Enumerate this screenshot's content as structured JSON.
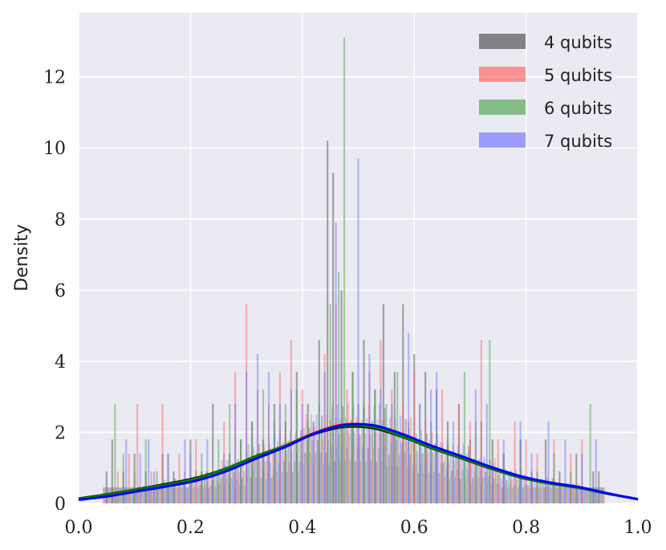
{
  "chart_data": {
    "type": "bar",
    "title": "",
    "xlabel": "",
    "ylabel": "Density",
    "xlim": [
      0.0,
      1.0
    ],
    "ylim": [
      0,
      13.8
    ],
    "x_ticks": [
      "0.0",
      "0.2",
      "0.4",
      "0.6",
      "0.8",
      "1.0"
    ],
    "y_ticks": [
      "0",
      "2",
      "4",
      "6",
      "8",
      "10",
      "12"
    ],
    "grid": true,
    "legend_position": "top-right",
    "series": [
      {
        "name": "4 qubits",
        "color": "#555555",
        "line_color": "#000000",
        "spikes": [
          [
            0.05,
            0.9
          ],
          [
            0.06,
            1.8
          ],
          [
            0.08,
            0.9
          ],
          [
            0.1,
            1.4
          ],
          [
            0.12,
            0.9
          ],
          [
            0.15,
            1.4
          ],
          [
            0.17,
            0.9
          ],
          [
            0.2,
            1.8
          ],
          [
            0.22,
            0.9
          ],
          [
            0.24,
            2.8
          ],
          [
            0.27,
            1.4
          ],
          [
            0.29,
            1.8
          ],
          [
            0.31,
            2.3
          ],
          [
            0.33,
            1.8
          ],
          [
            0.35,
            2.8
          ],
          [
            0.37,
            2.3
          ],
          [
            0.39,
            3.7
          ],
          [
            0.41,
            2.8
          ],
          [
            0.43,
            4.6
          ],
          [
            0.445,
            10.2
          ],
          [
            0.455,
            9.3
          ],
          [
            0.47,
            6.0
          ],
          [
            0.49,
            3.7
          ],
          [
            0.51,
            4.6
          ],
          [
            0.53,
            3.2
          ],
          [
            0.545,
            5.6
          ],
          [
            0.565,
            3.7
          ],
          [
            0.58,
            5.6
          ],
          [
            0.6,
            4.2
          ],
          [
            0.62,
            3.7
          ],
          [
            0.64,
            3.2
          ],
          [
            0.66,
            2.3
          ],
          [
            0.68,
            2.8
          ],
          [
            0.7,
            1.8
          ],
          [
            0.72,
            2.3
          ],
          [
            0.74,
            1.8
          ],
          [
            0.76,
            1.4
          ],
          [
            0.79,
            1.8
          ],
          [
            0.81,
            0.9
          ],
          [
            0.835,
            1.8
          ],
          [
            0.86,
            0.9
          ],
          [
            0.89,
            1.4
          ],
          [
            0.92,
            0.9
          ]
        ],
        "kde": [
          0.14,
          0.26,
          0.4,
          0.55,
          0.72,
          0.98,
          1.32,
          1.62,
          1.95,
          2.15,
          2.12,
          1.87,
          1.55,
          1.27,
          0.98,
          0.73,
          0.56,
          0.44,
          0.27,
          0.12
        ]
      },
      {
        "name": "5 qubits",
        "color": "#ff6b6b",
        "line_color": "#ff0000",
        "spikes": [
          [
            0.07,
            0.9
          ],
          [
            0.09,
            1.4
          ],
          [
            0.105,
            2.8
          ],
          [
            0.13,
            0.9
          ],
          [
            0.15,
            2.8
          ],
          [
            0.18,
            1.4
          ],
          [
            0.21,
            1.8
          ],
          [
            0.23,
            0.9
          ],
          [
            0.26,
            2.3
          ],
          [
            0.28,
            3.7
          ],
          [
            0.3,
            5.6
          ],
          [
            0.32,
            3.2
          ],
          [
            0.34,
            2.8
          ],
          [
            0.36,
            3.7
          ],
          [
            0.38,
            4.6
          ],
          [
            0.4,
            3.2
          ],
          [
            0.42,
            2.3
          ],
          [
            0.44,
            4.2
          ],
          [
            0.46,
            5.6
          ],
          [
            0.48,
            3.2
          ],
          [
            0.5,
            2.8
          ],
          [
            0.52,
            3.7
          ],
          [
            0.54,
            4.6
          ],
          [
            0.56,
            3.2
          ],
          [
            0.58,
            2.8
          ],
          [
            0.6,
            3.7
          ],
          [
            0.62,
            2.3
          ],
          [
            0.65,
            3.2
          ],
          [
            0.68,
            2.8
          ],
          [
            0.7,
            2.3
          ],
          [
            0.72,
            4.6
          ],
          [
            0.75,
            1.8
          ],
          [
            0.78,
            2.3
          ],
          [
            0.8,
            1.8
          ],
          [
            0.82,
            1.4
          ],
          [
            0.85,
            1.8
          ],
          [
            0.88,
            1.4
          ],
          [
            0.9,
            1.8
          ],
          [
            0.93,
            0.9
          ]
        ],
        "kde": [
          0.12,
          0.24,
          0.38,
          0.52,
          0.7,
          0.96,
          1.3,
          1.62,
          1.98,
          2.22,
          2.18,
          1.9,
          1.58,
          1.3,
          1.0,
          0.74,
          0.56,
          0.44,
          0.27,
          0.12
        ]
      },
      {
        "name": "6 qubits",
        "color": "#5aa85a",
        "line_color": "#008000",
        "spikes": [
          [
            0.065,
            2.8
          ],
          [
            0.08,
            1.4
          ],
          [
            0.1,
            0.9
          ],
          [
            0.12,
            1.8
          ],
          [
            0.14,
            0.9
          ],
          [
            0.16,
            1.4
          ],
          [
            0.19,
            0.9
          ],
          [
            0.22,
            1.4
          ],
          [
            0.25,
            1.8
          ],
          [
            0.27,
            2.8
          ],
          [
            0.29,
            1.8
          ],
          [
            0.31,
            2.3
          ],
          [
            0.33,
            3.2
          ],
          [
            0.35,
            2.3
          ],
          [
            0.37,
            2.8
          ],
          [
            0.39,
            3.2
          ],
          [
            0.41,
            2.3
          ],
          [
            0.43,
            2.8
          ],
          [
            0.45,
            5.6
          ],
          [
            0.465,
            6.5
          ],
          [
            0.475,
            13.1
          ],
          [
            0.49,
            3.7
          ],
          [
            0.51,
            2.8
          ],
          [
            0.53,
            3.2
          ],
          [
            0.55,
            2.8
          ],
          [
            0.57,
            3.7
          ],
          [
            0.59,
            2.3
          ],
          [
            0.61,
            2.8
          ],
          [
            0.63,
            2.3
          ],
          [
            0.66,
            1.8
          ],
          [
            0.69,
            3.7
          ],
          [
            0.71,
            2.3
          ],
          [
            0.735,
            4.6
          ],
          [
            0.76,
            1.4
          ],
          [
            0.79,
            1.8
          ],
          [
            0.82,
            0.9
          ],
          [
            0.85,
            1.4
          ],
          [
            0.88,
            0.9
          ],
          [
            0.915,
            2.8
          ],
          [
            0.93,
            0.9
          ]
        ],
        "kde": [
          0.13,
          0.25,
          0.39,
          0.53,
          0.7,
          0.97,
          1.31,
          1.61,
          1.96,
          2.18,
          2.15,
          1.88,
          1.56,
          1.28,
          0.99,
          0.74,
          0.56,
          0.44,
          0.27,
          0.12
        ]
      },
      {
        "name": "7 qubits",
        "color": "#7a7aff",
        "line_color": "#0000ff",
        "spikes": [
          [
            0.085,
            1.8
          ],
          [
            0.11,
            1.4
          ],
          [
            0.125,
            1.8
          ],
          [
            0.135,
            0.9
          ],
          [
            0.16,
            1.4
          ],
          [
            0.19,
            1.8
          ],
          [
            0.2,
            1.4
          ],
          [
            0.23,
            1.8
          ],
          [
            0.26,
            1.4
          ],
          [
            0.28,
            2.8
          ],
          [
            0.3,
            3.7
          ],
          [
            0.32,
            4.2
          ],
          [
            0.34,
            3.7
          ],
          [
            0.36,
            2.8
          ],
          [
            0.38,
            3.2
          ],
          [
            0.4,
            2.8
          ],
          [
            0.42,
            2.3
          ],
          [
            0.44,
            3.7
          ],
          [
            0.46,
            7.9
          ],
          [
            0.5,
            9.7
          ],
          [
            0.52,
            4.2
          ],
          [
            0.54,
            3.2
          ],
          [
            0.56,
            2.8
          ],
          [
            0.59,
            4.8
          ],
          [
            0.61,
            2.8
          ],
          [
            0.63,
            3.2
          ],
          [
            0.64,
            3.7
          ],
          [
            0.67,
            2.3
          ],
          [
            0.71,
            3.2
          ],
          [
            0.73,
            2.8
          ],
          [
            0.76,
            1.8
          ],
          [
            0.79,
            2.3
          ],
          [
            0.81,
            1.4
          ],
          [
            0.84,
            2.3
          ],
          [
            0.87,
            1.8
          ],
          [
            0.9,
            1.4
          ],
          [
            0.925,
            1.8
          ]
        ],
        "kde": [
          0.1,
          0.2,
          0.34,
          0.48,
          0.64,
          0.9,
          1.25,
          1.58,
          1.96,
          2.2,
          2.2,
          1.95,
          1.62,
          1.33,
          1.03,
          0.77,
          0.59,
          0.46,
          0.28,
          0.12
        ]
      }
    ]
  }
}
